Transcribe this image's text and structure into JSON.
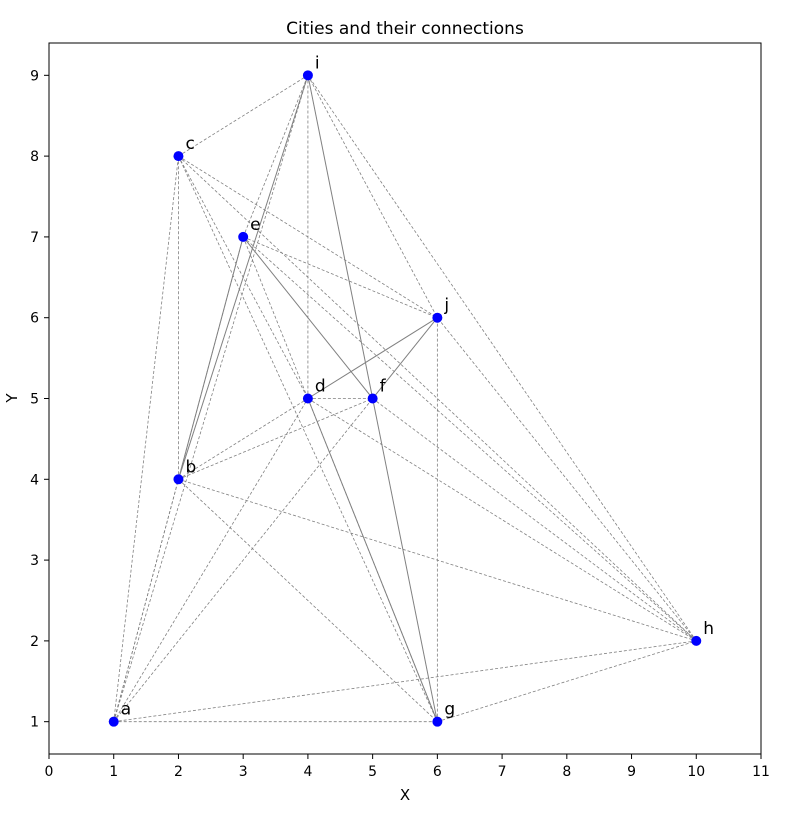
{
  "chart_data": {
    "type": "scatter",
    "title": "Cities and their connections",
    "xlabel": "X",
    "ylabel": "Y",
    "xlim": [
      0,
      11
    ],
    "ylim": [
      0.6,
      9.4
    ],
    "xticks": [
      "0",
      "1",
      "2",
      "3",
      "4",
      "5",
      "6",
      "7",
      "8",
      "9",
      "10",
      "11"
    ],
    "yticks": [
      "1",
      "2",
      "3",
      "4",
      "5",
      "6",
      "7",
      "8",
      "9"
    ],
    "grid": false,
    "point_color": "#0000ff",
    "edge_color": "#808080",
    "points": [
      {
        "label": "a",
        "x": 1,
        "y": 1
      },
      {
        "label": "b",
        "x": 2,
        "y": 4
      },
      {
        "label": "c",
        "x": 2,
        "y": 8
      },
      {
        "label": "d",
        "x": 4,
        "y": 5
      },
      {
        "label": "e",
        "x": 3,
        "y": 7
      },
      {
        "label": "f",
        "x": 5,
        "y": 5
      },
      {
        "label": "g",
        "x": 6,
        "y": 1
      },
      {
        "label": "h",
        "x": 10,
        "y": 2
      },
      {
        "label": "i",
        "x": 4,
        "y": 9
      },
      {
        "label": "j",
        "x": 6,
        "y": 6
      }
    ],
    "edges_dashed": [
      [
        "a",
        "b"
      ],
      [
        "a",
        "c"
      ],
      [
        "a",
        "d"
      ],
      [
        "a",
        "e"
      ],
      [
        "a",
        "f"
      ],
      [
        "a",
        "g"
      ],
      [
        "a",
        "h"
      ],
      [
        "a",
        "i"
      ],
      [
        "b",
        "c"
      ],
      [
        "b",
        "d"
      ],
      [
        "b",
        "f"
      ],
      [
        "b",
        "g"
      ],
      [
        "b",
        "h"
      ],
      [
        "c",
        "d"
      ],
      [
        "c",
        "h"
      ],
      [
        "c",
        "i"
      ],
      [
        "c",
        "j"
      ],
      [
        "c",
        "g"
      ],
      [
        "d",
        "f"
      ],
      [
        "d",
        "i"
      ],
      [
        "d",
        "h"
      ],
      [
        "e",
        "i"
      ],
      [
        "e",
        "j"
      ],
      [
        "e",
        "g"
      ],
      [
        "e",
        "h"
      ],
      [
        "f",
        "h"
      ],
      [
        "g",
        "j"
      ],
      [
        "g",
        "h"
      ],
      [
        "h",
        "i"
      ],
      [
        "h",
        "j"
      ],
      [
        "i",
        "j"
      ]
    ],
    "edges_solid": [
      [
        "b",
        "e"
      ],
      [
        "b",
        "i"
      ],
      [
        "e",
        "f"
      ],
      [
        "d",
        "j"
      ],
      [
        "f",
        "j"
      ],
      [
        "d",
        "g"
      ],
      [
        "f",
        "g"
      ],
      [
        "f",
        "i"
      ]
    ]
  }
}
